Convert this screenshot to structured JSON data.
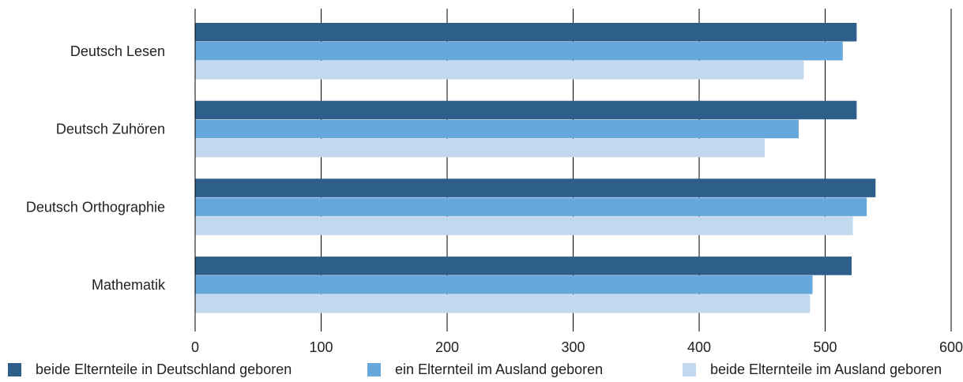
{
  "chart_data": {
    "type": "bar",
    "orientation": "horizontal",
    "categories": [
      "Deutsch Lesen",
      "Deutsch Zuhören",
      "Deutsch Orthographie",
      "Mathematik"
    ],
    "series": [
      {
        "name": "beide Elternteile in Deutschland geboren",
        "color": "#2e5f8a",
        "values": [
          525,
          525,
          540,
          521
        ]
      },
      {
        "name": "ein Elternteil im Ausland geboren",
        "color": "#66a8dc",
        "values": [
          514,
          479,
          533,
          490
        ]
      },
      {
        "name": "beide Elternteile im Ausland geboren",
        "color": "#c2d8ef",
        "values": [
          483,
          452,
          522,
          488
        ]
      }
    ],
    "xlim": [
      0,
      600
    ],
    "xticks": [
      "0",
      "100",
      "200",
      "300",
      "400",
      "500",
      "600"
    ],
    "grid": true,
    "legend_position": "bottom"
  }
}
